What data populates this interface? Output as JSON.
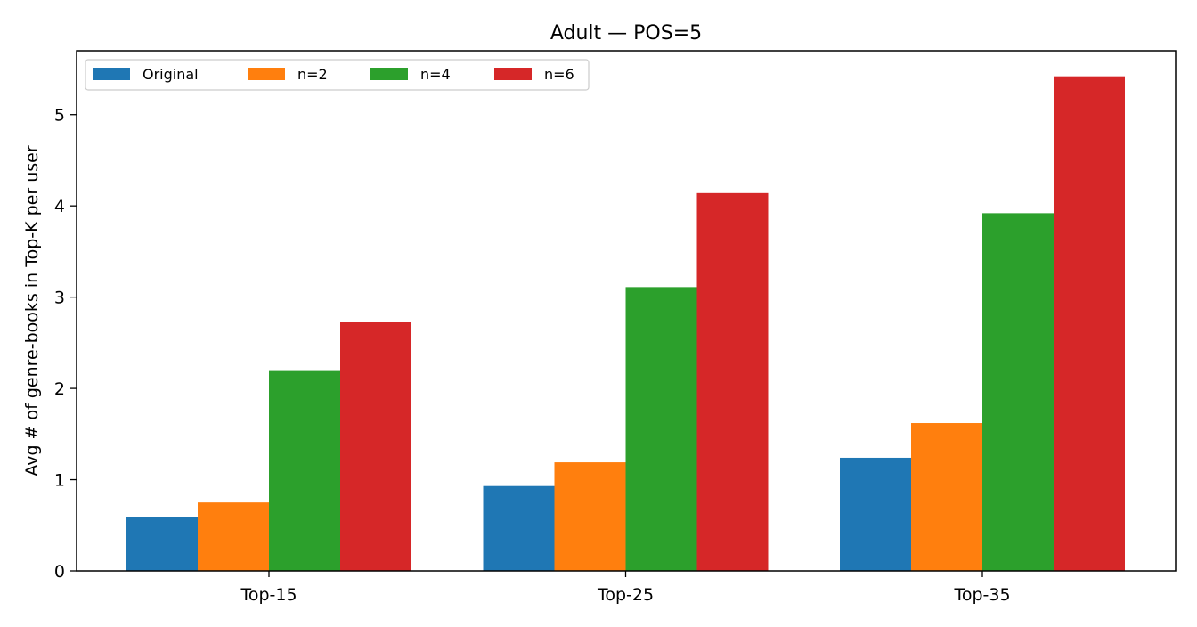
{
  "chart_data": {
    "type": "bar",
    "title": "Adult — POS=5",
    "xlabel": "",
    "ylabel": "Avg # of genre-books in Top-K per user",
    "categories": [
      "Top-15",
      "Top-25",
      "Top-35"
    ],
    "series": [
      {
        "name": "Original",
        "color": "#1f77b4",
        "values": [
          0.59,
          0.93,
          1.24
        ]
      },
      {
        "name": "n=2",
        "color": "#ff7f0e",
        "values": [
          0.75,
          1.19,
          1.62
        ]
      },
      {
        "name": "n=4",
        "color": "#2ca02c",
        "values": [
          2.2,
          3.11,
          3.92
        ]
      },
      {
        "name": "n=6",
        "color": "#d62728",
        "values": [
          2.73,
          4.14,
          5.42
        ]
      }
    ],
    "ylim": [
      0,
      5.7
    ],
    "yticks": [
      0,
      1,
      2,
      3,
      4,
      5
    ],
    "legend": "top-left",
    "grid": false
  }
}
